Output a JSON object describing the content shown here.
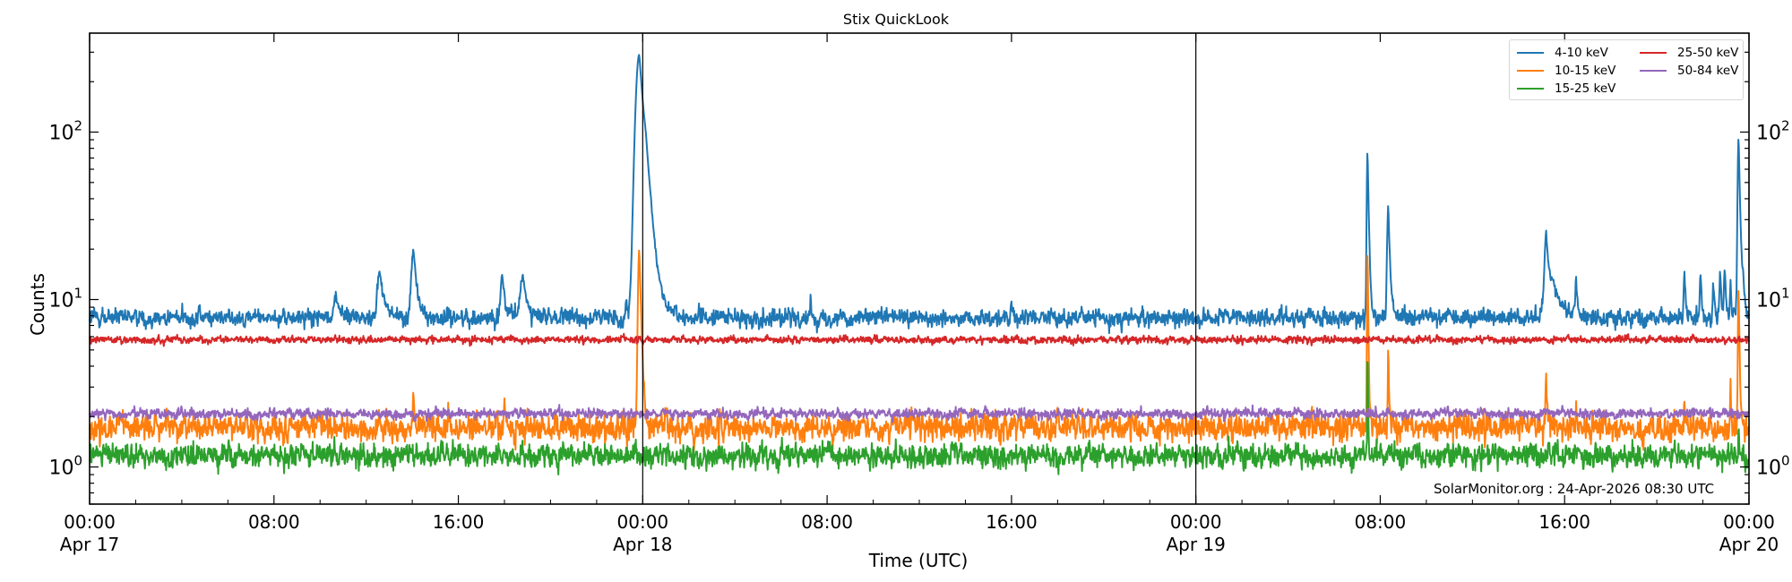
{
  "chart_data": {
    "type": "line",
    "title": "Stix QuickLook",
    "xlabel": "Time (UTC)",
    "ylabel": "Counts",
    "yscale": "log",
    "ylim": [
      0.6,
      390
    ],
    "xlim_hours": [
      0,
      72
    ],
    "grid": false,
    "legend_position": "upper right",
    "y_ticks": [
      {
        "value": 1,
        "label_base": "10",
        "label_exp": "0"
      },
      {
        "value": 10,
        "label_base": "10",
        "label_exp": "1"
      },
      {
        "value": 100,
        "label_base": "10",
        "label_exp": "2"
      }
    ],
    "x_ticks": [
      {
        "hour": 0,
        "time": "00:00",
        "date": "Apr 17"
      },
      {
        "hour": 8,
        "time": "08:00",
        "date": ""
      },
      {
        "hour": 16,
        "time": "16:00",
        "date": ""
      },
      {
        "hour": 24,
        "time": "00:00",
        "date": "Apr 18"
      },
      {
        "hour": 32,
        "time": "08:00",
        "date": ""
      },
      {
        "hour": 40,
        "time": "16:00",
        "date": ""
      },
      {
        "hour": 48,
        "time": "00:00",
        "date": "Apr 19"
      },
      {
        "hour": 56,
        "time": "08:00",
        "date": ""
      },
      {
        "hour": 64,
        "time": "16:00",
        "date": ""
      },
      {
        "hour": 72,
        "time": "00:00",
        "date": "Apr 20"
      }
    ],
    "day_boundaries_hours": [
      24,
      48
    ],
    "series": [
      {
        "name": "4-10 keV",
        "color": "#1f77b4",
        "baseline": 7.8,
        "noise": 0.045,
        "peaks": [
          {
            "hour": 10.7,
            "value": 10.5,
            "width": 0.15
          },
          {
            "hour": 12.6,
            "value": 14.5,
            "width": 0.18
          },
          {
            "hour": 14.05,
            "value": 19.5,
            "width": 0.14
          },
          {
            "hour": 17.9,
            "value": 14.0,
            "width": 0.12
          },
          {
            "hour": 18.8,
            "value": 13.5,
            "width": 0.18
          },
          {
            "hour": 23.3,
            "value": 10.0,
            "width": 0.05
          },
          {
            "hour": 23.85,
            "value": 290,
            "width": 0.22
          },
          {
            "hour": 24.15,
            "value": 22,
            "width": 0.15
          },
          {
            "hour": 31.3,
            "value": 9.5,
            "width": 0.05
          },
          {
            "hour": 40.0,
            "value": 10.0,
            "width": 0.05
          },
          {
            "hour": 52.9,
            "value": 9.5,
            "width": 0.05
          },
          {
            "hour": 55.45,
            "value": 78,
            "width": 0.05
          },
          {
            "hour": 56.35,
            "value": 36,
            "width": 0.07
          },
          {
            "hour": 59.0,
            "value": 9.5,
            "width": 0.05
          },
          {
            "hour": 63.2,
            "value": 24,
            "width": 0.1
          },
          {
            "hour": 63.5,
            "value": 12,
            "width": 0.4
          },
          {
            "hour": 64.5,
            "value": 13.5,
            "width": 0.05
          },
          {
            "hour": 69.2,
            "value": 15,
            "width": 0.05
          },
          {
            "hour": 69.9,
            "value": 14.5,
            "width": 0.05
          },
          {
            "hour": 70.45,
            "value": 12.5,
            "width": 0.05
          },
          {
            "hour": 70.75,
            "value": 14.5,
            "width": 0.05
          },
          {
            "hour": 70.95,
            "value": 15.5,
            "width": 0.05
          },
          {
            "hour": 71.2,
            "value": 12,
            "width": 0.05
          },
          {
            "hour": 71.55,
            "value": 93,
            "width": 0.06
          },
          {
            "hour": 71.75,
            "value": 12,
            "width": 0.06
          }
        ]
      },
      {
        "name": "10-15 keV",
        "color": "#ff7f0e",
        "baseline": 1.72,
        "noise": 0.07,
        "peaks": [
          {
            "hour": 14.05,
            "value": 3.0,
            "width": 0.04
          },
          {
            "hour": 18.0,
            "value": 2.3,
            "width": 0.03
          },
          {
            "hour": 23.85,
            "value": 20,
            "width": 0.08
          },
          {
            "hour": 42.0,
            "value": 2.4,
            "width": 0.03
          },
          {
            "hour": 55.45,
            "value": 21,
            "width": 0.03
          },
          {
            "hour": 56.35,
            "value": 5.5,
            "width": 0.03
          },
          {
            "hour": 63.2,
            "value": 3.6,
            "width": 0.04
          },
          {
            "hour": 64.5,
            "value": 2.5,
            "width": 0.03
          },
          {
            "hour": 69.2,
            "value": 2.5,
            "width": 0.03
          },
          {
            "hour": 71.2,
            "value": 3.4,
            "width": 0.03
          },
          {
            "hour": 71.55,
            "value": 12,
            "width": 0.04
          }
        ]
      },
      {
        "name": "15-25 keV",
        "color": "#2ca02c",
        "baseline": 1.17,
        "noise": 0.06,
        "peaks": [
          {
            "hour": 55.45,
            "value": 5.6,
            "width": 0.02
          },
          {
            "hour": 71.55,
            "value": 2.0,
            "width": 0.02
          }
        ]
      },
      {
        "name": "25-50 keV",
        "color": "#d62728",
        "baseline": 5.75,
        "noise": 0.018,
        "peaks": []
      },
      {
        "name": "50-84 keV",
        "color": "#9467bd",
        "baseline": 2.08,
        "noise": 0.025,
        "peaks": []
      }
    ],
    "annotation": "SolarMonitor.org : 24-Apr-2026 08:30 UTC"
  },
  "legend": {
    "items": [
      {
        "label": "4-10 keV",
        "color": "#1f77b4"
      },
      {
        "label": "10-15 keV",
        "color": "#ff7f0e"
      },
      {
        "label": "15-25 keV",
        "color": "#2ca02c"
      },
      {
        "label": "25-50 keV",
        "color": "#d62728"
      },
      {
        "label": "50-84 keV",
        "color": "#9467bd"
      }
    ]
  }
}
